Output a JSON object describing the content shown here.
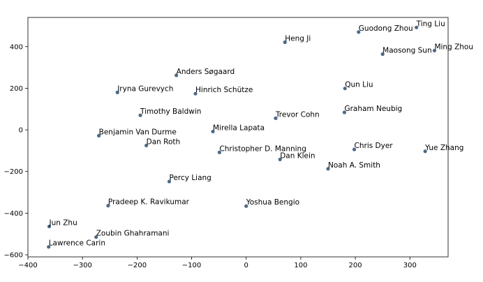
{
  "chart_data": {
    "type": "scatter",
    "title": "",
    "xlabel": "",
    "ylabel": "",
    "xlim": [
      -400,
      370
    ],
    "ylim": [
      -610,
      540
    ],
    "x_ticks": [
      -400,
      -300,
      -200,
      -100,
      0,
      100,
      200,
      300
    ],
    "y_ticks": [
      -600,
      -400,
      -200,
      0,
      200,
      400
    ],
    "grid": false,
    "point_color": "#4b6a88",
    "points": [
      {
        "label": "Ting Liu",
        "x": 312,
        "y": 492
      },
      {
        "label": "Guodong Zhou",
        "x": 206,
        "y": 470
      },
      {
        "label": "Heng Ji",
        "x": 71,
        "y": 421
      },
      {
        "label": "Ming Zhou",
        "x": 345,
        "y": 381
      },
      {
        "label": "Maosong Sun",
        "x": 250,
        "y": 364
      },
      {
        "label": "Anders Søgaard",
        "x": -128,
        "y": 262
      },
      {
        "label": "Iryna Gurevych",
        "x": -236,
        "y": 180
      },
      {
        "label": "Hinrich Schütze",
        "x": -93,
        "y": 174
      },
      {
        "label": "Qun Liu",
        "x": 181,
        "y": 199
      },
      {
        "label": "Graham Neubig",
        "x": 180,
        "y": 84
      },
      {
        "label": "Timothy Baldwin",
        "x": -194,
        "y": 70
      },
      {
        "label": "Trevor Cohn",
        "x": 54,
        "y": 56
      },
      {
        "label": "Mirella Lapata",
        "x": -61,
        "y": -8
      },
      {
        "label": "Benjamin Van Durme",
        "x": -270,
        "y": -28
      },
      {
        "label": "Dan Roth",
        "x": -183,
        "y": -75
      },
      {
        "label": "Christopher D. Manning",
        "x": -49,
        "y": -108
      },
      {
        "label": "Chris Dyer",
        "x": 198,
        "y": -94
      },
      {
        "label": "Yue Zhang",
        "x": 328,
        "y": -103
      },
      {
        "label": "Dan Klein",
        "x": 62,
        "y": -142
      },
      {
        "label": "Noah A. Smith",
        "x": 150,
        "y": -187
      },
      {
        "label": "Percy Liang",
        "x": -141,
        "y": -248
      },
      {
        "label": "Pradeep K. Ravikumar",
        "x": -253,
        "y": -364
      },
      {
        "label": "Yoshua Bengio",
        "x": 0,
        "y": -366
      },
      {
        "label": "Jun Zhu",
        "x": -361,
        "y": -464
      },
      {
        "label": "Zoubin Ghahramani",
        "x": -275,
        "y": -515
      },
      {
        "label": "Lawrence Carin",
        "x": -362,
        "y": -562
      }
    ]
  }
}
